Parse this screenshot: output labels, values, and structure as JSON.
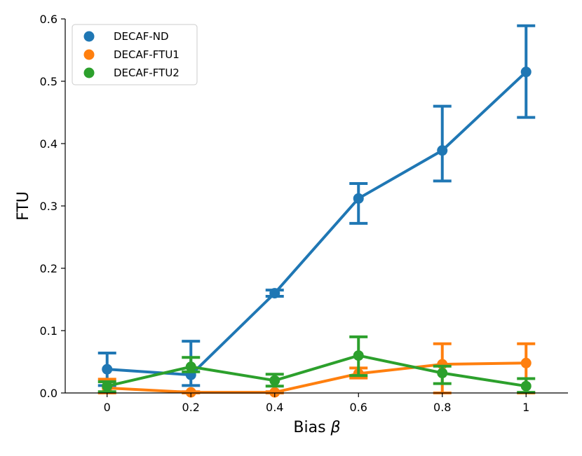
{
  "chart_data": {
    "type": "line",
    "x": [
      0,
      0.2,
      0.4,
      0.6,
      0.8,
      1
    ],
    "x_tick_labels": [
      "0",
      "0.2",
      "0.4",
      "0.6",
      "0.8",
      "1"
    ],
    "y_tick_labels": [
      "0.0",
      "0.1",
      "0.2",
      "0.3",
      "0.4",
      "0.5",
      "0.6"
    ],
    "xlabel_text": "Bias ",
    "xlabel_symbol": "β",
    "ylabel": "FTU",
    "xlim": [
      -0.1,
      1.1
    ],
    "ylim": [
      0,
      0.6
    ],
    "grid": false,
    "legend_position": "top-left",
    "series": [
      {
        "name": "DECAF-ND",
        "color": "#1f77b4",
        "values": [
          0.038,
          0.029,
          0.16,
          0.312,
          0.389,
          0.515
        ],
        "error_low": [
          0.012,
          0.012,
          0.155,
          0.272,
          0.34,
          0.442
        ],
        "error_high": [
          0.064,
          0.083,
          0.165,
          0.336,
          0.46,
          0.589
        ]
      },
      {
        "name": "DECAF-FTU1",
        "color": "#ff7f0e",
        "values": [
          0.008,
          0.001,
          0.001,
          0.031,
          0.046,
          0.048
        ],
        "error_low": [
          0.0,
          0.0,
          0.0,
          0.024,
          0.0,
          0.0
        ],
        "error_high": [
          0.022,
          0.002,
          0.002,
          0.04,
          0.079,
          0.079
        ]
      },
      {
        "name": "DECAF-FTU2",
        "color": "#2ca02c",
        "values": [
          0.011,
          0.042,
          0.02,
          0.06,
          0.032,
          0.011
        ],
        "error_low": [
          0.002,
          0.034,
          0.011,
          0.028,
          0.015,
          0.001
        ],
        "error_high": [
          0.018,
          0.057,
          0.03,
          0.09,
          0.043,
          0.023
        ]
      }
    ]
  }
}
